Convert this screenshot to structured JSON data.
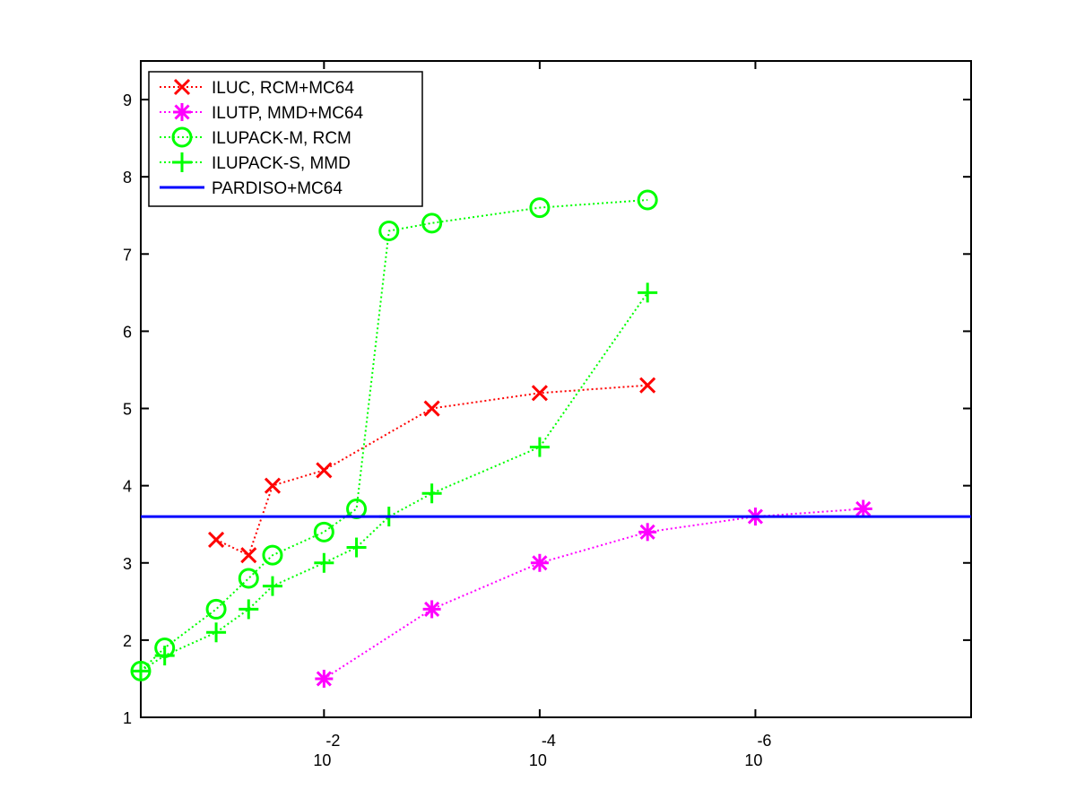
{
  "chart_data": {
    "type": "line",
    "title": "",
    "xlabel": "",
    "ylabel": "",
    "x_scale": "log-reversed",
    "xlim": [
      0.5,
      1e-08
    ],
    "ylim": [
      1,
      9.5
    ],
    "grid": false,
    "legend_position": "top-left",
    "x_ticks": [
      {
        "value": 0.01,
        "base": "10",
        "exponent": "-2"
      },
      {
        "value": 0.0001,
        "base": "10",
        "exponent": "-4"
      },
      {
        "value": 1e-06,
        "base": "10",
        "exponent": "-6"
      }
    ],
    "y_ticks": [
      1,
      2,
      3,
      4,
      5,
      6,
      7,
      8,
      9
    ],
    "series": [
      {
        "name": "ILUC, RCM+MC64",
        "color": "#ff0000",
        "marker": "x",
        "line_style": "dotted",
        "points": [
          [
            0.1,
            3.3
          ],
          [
            0.05,
            3.1
          ],
          [
            0.03,
            4.0
          ],
          [
            0.01,
            4.2
          ],
          [
            0.001,
            5.0
          ],
          [
            0.0001,
            5.2
          ],
          [
            1e-05,
            5.3
          ]
        ]
      },
      {
        "name": "ILUTP, MMD+MC64",
        "color": "#ff00ff",
        "marker": "star",
        "line_style": "dotted",
        "points": [
          [
            0.01,
            1.5
          ],
          [
            0.001,
            2.4
          ],
          [
            0.0001,
            3.0
          ],
          [
            1e-05,
            3.4
          ],
          [
            1e-06,
            3.6
          ],
          [
            1e-07,
            3.7
          ]
        ]
      },
      {
        "name": "ILUPACK-M, RCM",
        "color": "#00ff00",
        "marker": "circle",
        "line_style": "dotted",
        "points": [
          [
            0.5,
            1.6
          ],
          [
            0.3,
            1.9
          ],
          [
            0.1,
            2.4
          ],
          [
            0.05,
            2.8
          ],
          [
            0.03,
            3.1
          ],
          [
            0.01,
            3.4
          ],
          [
            0.005,
            3.7
          ],
          [
            0.0025,
            7.3
          ],
          [
            0.001,
            7.4
          ],
          [
            0.0001,
            7.6
          ],
          [
            1e-05,
            7.7
          ]
        ]
      },
      {
        "name": "ILUPACK-S, MMD",
        "color": "#00ff00",
        "marker": "plus",
        "line_style": "dotted",
        "points": [
          [
            0.5,
            1.6
          ],
          [
            0.3,
            1.8
          ],
          [
            0.1,
            2.1
          ],
          [
            0.05,
            2.4
          ],
          [
            0.03,
            2.7
          ],
          [
            0.01,
            3.0
          ],
          [
            0.005,
            3.2
          ],
          [
            0.0025,
            3.6
          ],
          [
            0.001,
            3.9
          ],
          [
            0.0001,
            4.5
          ],
          [
            1e-05,
            6.5
          ]
        ]
      },
      {
        "name": "PARDISO+MC64",
        "color": "#0000ff",
        "marker": "none",
        "line_style": "solid",
        "points": [
          [
            0.5,
            3.6
          ],
          [
            1e-08,
            3.6
          ]
        ]
      }
    ]
  }
}
